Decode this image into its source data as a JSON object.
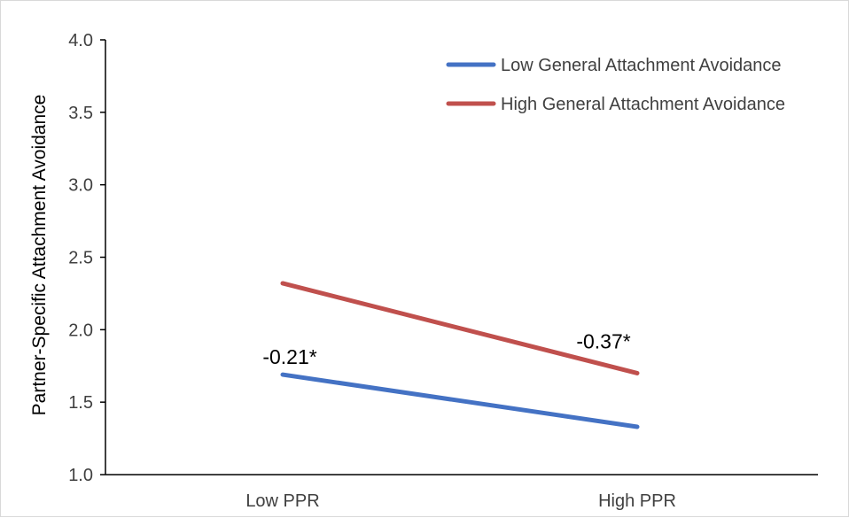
{
  "chart_data": {
    "type": "line",
    "title": "",
    "xlabel": "",
    "ylabel": "Partner-Specific Attachment Avoidance",
    "categories": [
      "Low PPR",
      "High PPR"
    ],
    "ylim": [
      1.0,
      4.0
    ],
    "yticks": [
      "1.0",
      "1.5",
      "2.0",
      "2.5",
      "3.0",
      "3.5",
      "4.0"
    ],
    "grid": false,
    "legend_position": "top-right",
    "series": [
      {
        "name": "Low General Attachment Avoidance",
        "color": "#4472c4",
        "values": [
          1.69,
          1.33
        ],
        "slope_label": "-0.21*"
      },
      {
        "name": "High General Attachment Avoidance",
        "color": "#c0504d",
        "values": [
          2.32,
          1.7
        ],
        "slope_label": "-0.37*"
      }
    ]
  }
}
